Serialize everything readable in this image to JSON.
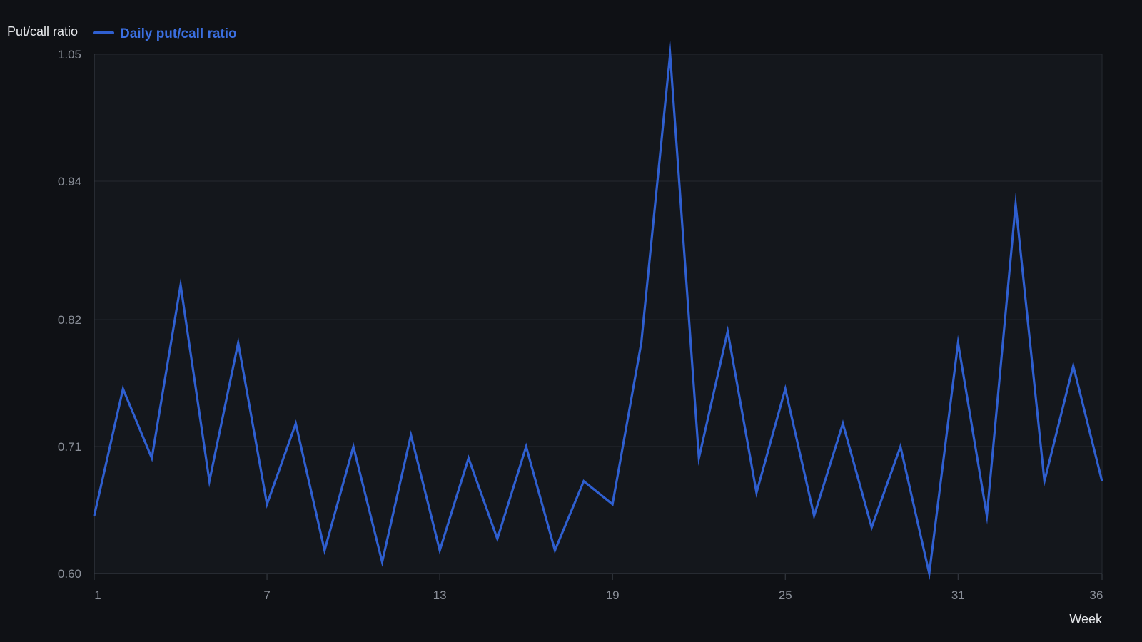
{
  "chart_data": {
    "type": "line",
    "ylabel": "Put/call ratio",
    "xlabel": "Week",
    "ylim": [
      0.6,
      1.05
    ],
    "xlim": [
      1,
      36
    ],
    "y_ticks": [
      "0.60",
      "0.71",
      "0.82",
      "0.94",
      "1.05"
    ],
    "x_ticks": [
      "1",
      "7",
      "13",
      "19",
      "25",
      "31",
      "36"
    ],
    "grid": "horizontal",
    "legend": "top-left",
    "colors": {
      "line": "#2f5fd0",
      "background": "#0f1115",
      "plot_background": "#14171c",
      "grid": "#262a31",
      "axis": "#3a3f47"
    },
    "series": [
      {
        "name": "Daily put/call ratio",
        "x": [
          1,
          2,
          3,
          4,
          5,
          6,
          7,
          8,
          9,
          10,
          11,
          12,
          13,
          14,
          15,
          16,
          17,
          18,
          19,
          20,
          21,
          22,
          23,
          24,
          25,
          26,
          27,
          28,
          29,
          30,
          31,
          32,
          33,
          34,
          35,
          36
        ],
        "values": [
          0.65,
          0.76,
          0.7,
          0.85,
          0.68,
          0.8,
          0.66,
          0.73,
          0.62,
          0.71,
          0.61,
          0.72,
          0.62,
          0.7,
          0.63,
          0.71,
          0.62,
          0.68,
          0.66,
          0.8,
          1.05,
          0.7,
          0.81,
          0.67,
          0.76,
          0.65,
          0.73,
          0.64,
          0.71,
          0.6,
          0.8,
          0.65,
          0.92,
          0.68,
          0.78,
          0.68
        ]
      }
    ]
  }
}
